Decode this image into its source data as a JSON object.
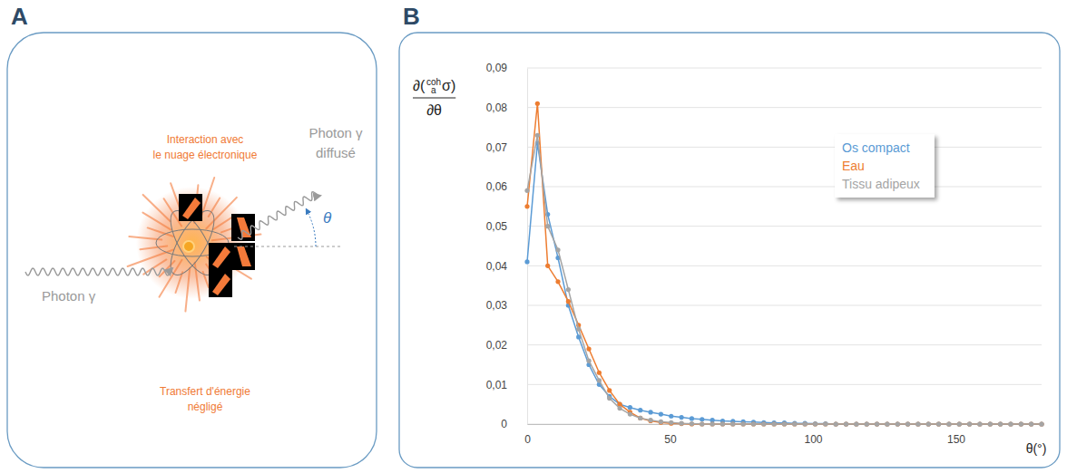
{
  "panel_labels": [
    "A",
    "B"
  ],
  "diagram": {
    "incoming_photon": "Photon γ",
    "scattered_photon": [
      "Photon γ",
      "diffusé"
    ],
    "angle": "θ",
    "interaction": [
      "Interaction avec",
      "le nuage électronique"
    ],
    "energy_transfer": [
      "Transfert d'énergie",
      "négligé"
    ]
  },
  "chart_data": {
    "type": "line",
    "marker": "circle",
    "y_label": {
      "pre": "∂(",
      "sup": "coh",
      "sub": "a",
      "symbol": "σ)",
      "denominator": "∂θ"
    },
    "x_label": "θ(°)",
    "x": [
      0,
      3.6,
      7.2,
      10.8,
      14.4,
      18,
      21.6,
      25.2,
      28.8,
      32.4,
      36,
      39.6,
      43.2,
      46.8,
      50.4,
      54,
      57.6,
      61.2,
      64.8,
      68.4,
      72,
      75.6,
      79.2,
      82.8,
      86.4,
      90,
      93.6,
      97.2,
      100.8,
      104.4,
      108,
      111.6,
      115.2,
      118.8,
      122.4,
      126,
      129.6,
      133.2,
      136.8,
      140.4,
      144,
      147.6,
      151.2,
      154.8,
      158.4,
      162,
      165.6,
      169.2,
      172.8,
      176.4,
      180
    ],
    "series": [
      {
        "name": "Os compact",
        "color": "#5b9bd5",
        "values": [
          0.041,
          0.071,
          0.053,
          0.042,
          0.03,
          0.022,
          0.015,
          0.01,
          0.007,
          0.005,
          0.0042,
          0.0035,
          0.003,
          0.0025,
          0.002,
          0.0017,
          0.0014,
          0.0012,
          0.001,
          0.0008,
          0.0007,
          0.0006,
          0.0005,
          0.0004,
          0.0003,
          0.0003,
          0.0002,
          0.0002,
          0.0001,
          0.0001,
          0,
          0,
          0,
          0,
          0,
          0,
          0,
          0,
          0,
          0,
          0,
          0,
          0,
          0,
          0,
          0,
          0,
          0,
          0,
          0,
          0
        ]
      },
      {
        "name": "Eau",
        "color": "#ed7d31",
        "values": [
          0.055,
          0.081,
          0.04,
          0.036,
          0.031,
          0.025,
          0.019,
          0.013,
          0.0085,
          0.005,
          0.003,
          0.0015,
          0.0008,
          0.0004,
          0.0002,
          0.0001,
          0,
          0,
          0,
          0,
          0,
          0,
          0,
          0,
          0,
          0,
          0,
          0,
          0,
          0,
          0,
          0,
          0,
          0,
          0,
          0,
          0,
          0,
          0,
          0,
          0,
          0,
          0,
          0,
          0,
          0,
          0,
          0,
          0,
          0,
          0
        ]
      },
      {
        "name": "Tissu adipeux",
        "color": "#a5a5a5",
        "values": [
          0.059,
          0.073,
          0.05,
          0.044,
          0.034,
          0.024,
          0.016,
          0.011,
          0.0065,
          0.004,
          0.0025,
          0.0015,
          0.001,
          0.0006,
          0.0004,
          0.0002,
          0.0001,
          0,
          0,
          0,
          0,
          0,
          0,
          0,
          0,
          0,
          0,
          0,
          0,
          0,
          0,
          0,
          0,
          0,
          0,
          0,
          0,
          0,
          0,
          0,
          0,
          0,
          0,
          0,
          0,
          0,
          0,
          0,
          0,
          0,
          0
        ]
      }
    ],
    "xlim": [
      0,
      180
    ],
    "ylim": [
      0,
      0.09
    ],
    "xticks": [
      0,
      50,
      100,
      150
    ],
    "yticks": [
      0,
      {
        "value": 0.01,
        "label": "0,01"
      },
      {
        "value": 0.02,
        "label": "0,02"
      },
      {
        "value": 0.03,
        "label": "0,03"
      },
      {
        "value": 0.04,
        "label": "0,04"
      },
      {
        "value": 0.05,
        "label": "0,05"
      },
      {
        "value": 0.06,
        "label": "0,06"
      },
      {
        "value": 0.07,
        "label": "0,07"
      },
      {
        "value": 0.08,
        "label": "0,08"
      },
      {
        "value": 0.09,
        "label": "0,09"
      }
    ],
    "grid": true,
    "legend": "top-right"
  }
}
